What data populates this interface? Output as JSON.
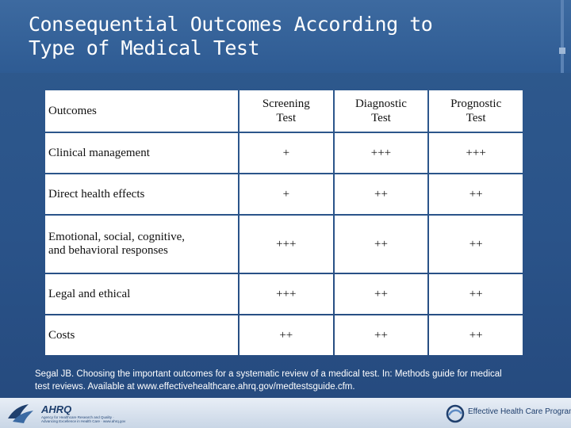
{
  "slide": {
    "title_line1": "Consequential Outcomes According to",
    "title_line2": "Type of Medical Test"
  },
  "table": {
    "headers": {
      "col0": "Outcomes",
      "col1_l1": "Screening",
      "col1_l2": "Test",
      "col2_l1": "Diagnostic",
      "col2_l2": "Test",
      "col3_l1": "Prognostic",
      "col3_l2": "Test"
    },
    "rows": [
      {
        "label": "Clinical management",
        "screening": "+",
        "diagnostic": "+++",
        "prognostic": "+++"
      },
      {
        "label": "Direct health effects",
        "screening": "+",
        "diagnostic": "++",
        "prognostic": "++"
      },
      {
        "label_l1": "Emotional, social, cognitive,",
        "label_l2": "and behavioral responses",
        "screening": "+++",
        "diagnostic": "++",
        "prognostic": "++"
      },
      {
        "label": "Legal and ethical",
        "screening": "+++",
        "diagnostic": "++",
        "prognostic": "++"
      },
      {
        "label": "Costs",
        "screening": "++",
        "diagnostic": "++",
        "prognostic": "++"
      }
    ]
  },
  "citation": {
    "line1": "Segal JB. Choosing the important outcomes for a systematic review of a medical test. In: Methods guide for medical",
    "line2": "test reviews. Available at www.effectivehealthcare.ahrq.gov/medtestsguide.cfm."
  },
  "footer": {
    "ahrq_text": "AHRQ",
    "ahrq_subtext": "Agency for Healthcare Research and Quality · Advancing Excellence in Health Care · www.ahrq.gov",
    "ehc_name": "Effective Health Care Program",
    "icons": [
      "hhs-eagle-icon",
      "ehc-swirl-icon"
    ]
  },
  "colors": {
    "background": "#2a5389",
    "title_text": "#ffffff",
    "table_cell": "#ffffff",
    "footer": "#d6e0ec"
  }
}
